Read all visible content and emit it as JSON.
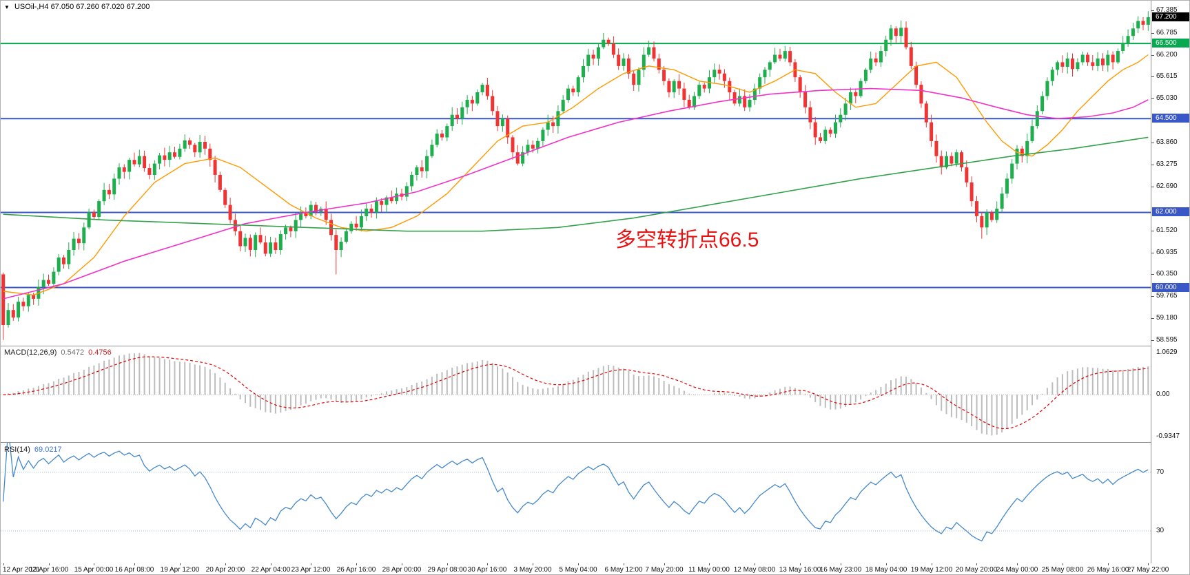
{
  "header": {
    "marker": "▼",
    "symbol_title": "USOil-,H4",
    "quote_line": "67.050 67.260 67.020 67.200"
  },
  "annotation": {
    "text": "多空转折点66.5",
    "color": "#e81414"
  },
  "indicators": {
    "macd": {
      "name": "MACD(12,26,9)",
      "value_main": "0.5472",
      "value_signal": "0.4756",
      "axis": [
        "1.0629",
        "0.00",
        "-0.9347"
      ],
      "params": [
        12,
        26,
        9
      ]
    },
    "rsi": {
      "name": "RSI(14)",
      "value": "69.0217",
      "period": 14,
      "levels": [
        70,
        30
      ],
      "axis": [
        "70",
        "30"
      ]
    }
  },
  "chart_data": {
    "type": "candlestick",
    "title": "USOil-,H4",
    "price_axis_ticks": [
      "67.385",
      "66.785",
      "66.200",
      "65.615",
      "65.030",
      "63.860",
      "63.275",
      "62.690",
      "61.520",
      "60.935",
      "60.350",
      "59.765",
      "59.180",
      "58.595"
    ],
    "price_range": {
      "min": 58.45,
      "max": 67.64
    },
    "current_price": 67.2,
    "current_price_label": "67.200",
    "hlines": [
      {
        "value": 66.5,
        "label": "66.500",
        "color": "#07a84f"
      },
      {
        "value": 64.5,
        "label": "64.500",
        "color": "#3a57c8"
      },
      {
        "value": 62.0,
        "label": "62.000",
        "color": "#3a57c8"
      },
      {
        "value": 60.0,
        "label": "60.000",
        "color": "#3a57c8"
      }
    ],
    "x_labels": [
      {
        "i": 0,
        "t": "12 Apr 2021"
      },
      {
        "i": 9,
        "t": "13 Apr 16:00"
      },
      {
        "i": 18,
        "t": "15 Apr 00:00"
      },
      {
        "i": 26,
        "t": "16 Apr 08:00"
      },
      {
        "i": 35,
        "t": "19 Apr 12:00"
      },
      {
        "i": 44,
        "t": "20 Apr 20:00"
      },
      {
        "i": 53,
        "t": "22 Apr 04:00"
      },
      {
        "i": 61,
        "t": "23 Apr 12:00"
      },
      {
        "i": 70,
        "t": "26 Apr 16:00"
      },
      {
        "i": 79,
        "t": "28 Apr 00:00"
      },
      {
        "i": 88,
        "t": "29 Apr 08:00"
      },
      {
        "i": 96,
        "t": "30 Apr 16:00"
      },
      {
        "i": 105,
        "t": "3 May 20:00"
      },
      {
        "i": 114,
        "t": "5 May 04:00"
      },
      {
        "i": 123,
        "t": "6 May 12:00"
      },
      {
        "i": 131,
        "t": "7 May 20:00"
      },
      {
        "i": 140,
        "t": "11 May 00:00"
      },
      {
        "i": 149,
        "t": "12 May 08:00"
      },
      {
        "i": 158,
        "t": "13 May 16:00"
      },
      {
        "i": 166,
        "t": "16 May 23:00"
      },
      {
        "i": 175,
        "t": "18 May 04:00"
      },
      {
        "i": 184,
        "t": "19 May 12:00"
      },
      {
        "i": 193,
        "t": "20 May 20:00"
      },
      {
        "i": 201,
        "t": "24 May 00:00"
      },
      {
        "i": 210,
        "t": "25 May 08:00"
      },
      {
        "i": 219,
        "t": "26 May 16:00"
      },
      {
        "i": 227,
        "t": "27 May 22:00"
      }
    ],
    "first_open": 60.35,
    "closes": [
      59.0,
      59.4,
      59.2,
      59.62,
      59.5,
      59.8,
      59.7,
      60.02,
      60.2,
      60.1,
      60.42,
      60.8,
      60.62,
      61.0,
      61.3,
      61.18,
      61.6,
      62.0,
      61.88,
      62.3,
      62.6,
      62.48,
      62.9,
      63.2,
      63.08,
      63.4,
      63.28,
      63.5,
      63.18,
      63.0,
      63.3,
      63.52,
      63.4,
      63.6,
      63.48,
      63.7,
      63.92,
      63.8,
      63.6,
      63.88,
      63.7,
      63.4,
      63.0,
      62.6,
      62.2,
      61.8,
      61.5,
      61.1,
      61.32,
      61.0,
      61.4,
      61.2,
      60.9,
      61.2,
      61.0,
      61.42,
      61.6,
      61.5,
      61.8,
      62.0,
      61.9,
      62.2,
      62.02,
      62.1,
      61.8,
      61.4,
      61.0,
      61.22,
      61.5,
      61.7,
      61.6,
      61.9,
      62.1,
      62.0,
      62.3,
      62.2,
      62.4,
      62.3,
      62.5,
      62.42,
      62.7,
      63.0,
      63.2,
      63.1,
      63.5,
      63.8,
      64.1,
      64.0,
      64.3,
      64.6,
      64.5,
      64.8,
      65.0,
      64.9,
      65.2,
      65.4,
      65.1,
      64.7,
      64.3,
      64.5,
      64.0,
      63.6,
      63.3,
      63.6,
      63.8,
      63.7,
      63.9,
      64.2,
      64.4,
      64.3,
      64.7,
      65.0,
      65.3,
      65.2,
      65.6,
      65.9,
      66.2,
      66.1,
      66.4,
      66.6,
      66.5,
      66.2,
      65.9,
      66.1,
      65.7,
      65.4,
      65.8,
      66.2,
      66.4,
      66.1,
      65.8,
      65.5,
      65.2,
      65.5,
      65.3,
      65.0,
      64.8,
      65.1,
      65.4,
      65.3,
      65.6,
      65.8,
      65.7,
      65.5,
      65.2,
      64.9,
      65.1,
      64.8,
      65.0,
      65.3,
      65.6,
      65.8,
      66.0,
      66.2,
      66.1,
      66.3,
      66.0,
      65.6,
      65.2,
      64.8,
      64.4,
      64.0,
      63.9,
      64.2,
      64.1,
      64.4,
      64.6,
      64.9,
      65.2,
      65.1,
      65.5,
      65.8,
      66.1,
      66.0,
      66.3,
      66.6,
      66.9,
      66.7,
      66.92,
      66.4,
      65.9,
      65.4,
      64.9,
      64.4,
      63.9,
      63.5,
      63.2,
      63.5,
      63.3,
      63.6,
      63.2,
      62.8,
      62.3,
      61.9,
      61.6,
      62.0,
      61.8,
      62.1,
      62.5,
      62.9,
      63.3,
      63.7,
      63.5,
      63.9,
      64.3,
      64.7,
      65.1,
      65.5,
      65.8,
      66.0,
      65.88,
      66.1,
      65.82,
      66.0,
      66.2,
      66.0,
      65.9,
      66.1,
      65.92,
      66.2,
      66.0,
      66.3,
      66.5,
      66.7,
      66.9,
      67.1,
      67.0,
      67.2
    ],
    "wick_spikes": [
      {
        "i": 0,
        "low": 58.6
      },
      {
        "i": 36,
        "high": 64.08
      },
      {
        "i": 66,
        "low": 60.35
      },
      {
        "i": 119,
        "high": 66.78
      },
      {
        "i": 176,
        "high": 67.0
      },
      {
        "i": 194,
        "low": 61.3
      },
      {
        "i": 227,
        "high": 67.36
      }
    ],
    "overlays": [
      {
        "name": "ma-fast-orange",
        "color": "#ff9900",
        "width": 1.4,
        "points": [
          [
            0,
            59.9
          ],
          [
            6,
            59.8
          ],
          [
            12,
            60.1
          ],
          [
            18,
            60.8
          ],
          [
            24,
            61.9
          ],
          [
            30,
            62.8
          ],
          [
            36,
            63.3
          ],
          [
            42,
            63.45
          ],
          [
            47,
            63.2
          ],
          [
            52,
            62.7
          ],
          [
            57,
            62.2
          ],
          [
            62,
            61.85
          ],
          [
            67,
            61.6
          ],
          [
            72,
            61.5
          ],
          [
            77,
            61.6
          ],
          [
            82,
            61.9
          ],
          [
            88,
            62.5
          ],
          [
            93,
            63.2
          ],
          [
            98,
            63.9
          ],
          [
            103,
            64.3
          ],
          [
            108,
            64.4
          ],
          [
            113,
            64.8
          ],
          [
            118,
            65.3
          ],
          [
            123,
            65.7
          ],
          [
            128,
            65.9
          ],
          [
            133,
            65.8
          ],
          [
            138,
            65.5
          ],
          [
            143,
            65.4
          ],
          [
            148,
            65.2
          ],
          [
            153,
            65.5
          ],
          [
            157,
            65.8
          ],
          [
            161,
            65.7
          ],
          [
            165,
            65.2
          ],
          [
            169,
            64.8
          ],
          [
            173,
            64.9
          ],
          [
            177,
            65.4
          ],
          [
            181,
            65.9
          ],
          [
            185,
            66.0
          ],
          [
            189,
            65.6
          ],
          [
            192,
            65.0
          ],
          [
            195,
            64.4
          ],
          [
            198,
            63.9
          ],
          [
            201,
            63.6
          ],
          [
            204,
            63.5
          ],
          [
            207,
            63.8
          ],
          [
            210,
            64.2
          ],
          [
            213,
            64.7
          ],
          [
            216,
            65.1
          ],
          [
            219,
            65.5
          ],
          [
            222,
            65.8
          ],
          [
            225,
            66.0
          ],
          [
            227,
            66.2
          ]
        ]
      },
      {
        "name": "ma-mid-magenta",
        "color": "#f032c8",
        "width": 1.6,
        "points": [
          [
            0,
            59.7
          ],
          [
            12,
            60.1
          ],
          [
            24,
            60.7
          ],
          [
            36,
            61.2
          ],
          [
            48,
            61.7
          ],
          [
            60,
            62.0
          ],
          [
            72,
            62.25
          ],
          [
            82,
            62.55
          ],
          [
            92,
            63.0
          ],
          [
            102,
            63.5
          ],
          [
            112,
            64.0
          ],
          [
            122,
            64.4
          ],
          [
            132,
            64.7
          ],
          [
            142,
            64.95
          ],
          [
            152,
            65.15
          ],
          [
            162,
            65.25
          ],
          [
            172,
            65.3
          ],
          [
            182,
            65.25
          ],
          [
            190,
            65.05
          ],
          [
            197,
            64.8
          ],
          [
            203,
            64.6
          ],
          [
            209,
            64.5
          ],
          [
            215,
            64.55
          ],
          [
            220,
            64.65
          ],
          [
            224,
            64.8
          ],
          [
            227,
            65.0
          ]
        ]
      },
      {
        "name": "ma-slow-green",
        "color": "#33a14c",
        "width": 1.6,
        "points": [
          [
            0,
            61.95
          ],
          [
            20,
            61.8
          ],
          [
            40,
            61.7
          ],
          [
            60,
            61.6
          ],
          [
            80,
            61.5
          ],
          [
            95,
            61.5
          ],
          [
            110,
            61.6
          ],
          [
            125,
            61.85
          ],
          [
            140,
            62.2
          ],
          [
            155,
            62.55
          ],
          [
            170,
            62.9
          ],
          [
            185,
            63.2
          ],
          [
            200,
            63.5
          ],
          [
            212,
            63.7
          ],
          [
            222,
            63.9
          ],
          [
            227,
            64.0
          ]
        ]
      }
    ],
    "colors": {
      "up": "#1fae4e",
      "down": "#f03434",
      "macd_hist": "#bdbdbd",
      "macd_signal": "#e00000",
      "rsi_line": "#4488cc",
      "rsi_levels": "#9fb9d6"
    }
  }
}
